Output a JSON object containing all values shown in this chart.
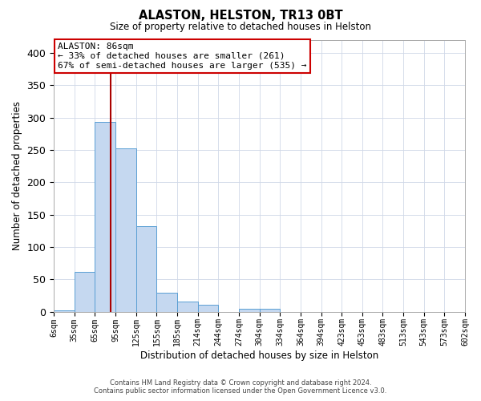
{
  "title": "ALASTON, HELSTON, TR13 0BT",
  "subtitle": "Size of property relative to detached houses in Helston",
  "xlabel": "Distribution of detached houses by size in Helston",
  "ylabel": "Number of detached properties",
  "bar_values": [
    2,
    62,
    293,
    253,
    132,
    29,
    15,
    10,
    0,
    4,
    5,
    0,
    0,
    0,
    0,
    0,
    0,
    0,
    0,
    0
  ],
  "bar_labels": [
    "6sqm",
    "35sqm",
    "65sqm",
    "95sqm",
    "125sqm",
    "155sqm",
    "185sqm",
    "214sqm",
    "244sqm",
    "274sqm",
    "304sqm",
    "334sqm",
    "364sqm",
    "394sqm",
    "423sqm",
    "453sqm",
    "483sqm",
    "513sqm",
    "543sqm",
    "573sqm",
    "602sqm"
  ],
  "bar_color": "#c5d8f0",
  "bar_edge_color": "#5a9fd4",
  "vline_index": 2.77,
  "vline_color": "#aa0000",
  "ylim": [
    0,
    420
  ],
  "yticks": [
    0,
    50,
    100,
    150,
    200,
    250,
    300,
    350,
    400
  ],
  "annotation_text": "ALASTON: 86sqm\n← 33% of detached houses are smaller (261)\n67% of semi-detached houses are larger (535) →",
  "annotation_box_color": "#ffffff",
  "annotation_box_edge": "#cc0000",
  "footer_line1": "Contains HM Land Registry data © Crown copyright and database right 2024.",
  "footer_line2": "Contains public sector information licensed under the Open Government Licence v3.0.",
  "background_color": "#ffffff",
  "grid_color": "#d0d8e8"
}
